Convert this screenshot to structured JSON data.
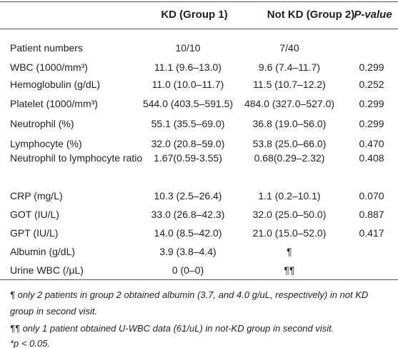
{
  "table": {
    "header": [
      "KD (Group 1)",
      "Not KD (Group 2)",
      "P-value"
    ],
    "rows": [
      [
        "Patient numbers",
        "10/10",
        "7/40",
        null
      ],
      [
        "WBC (1000/mm³)",
        "11.1 (9.6–13.0)",
        "9.6 (7.4–11.7)",
        "0.299"
      ],
      [
        "Hemoglobulin (g/dL)",
        "11.0 (10.0–11.7)",
        "11.5 (10.7–12.2)",
        "0.252"
      ],
      [
        "Platelet (1000/mm³)",
        "544.0 (403.5–591.5)",
        "484.0 (327.0–527.0)",
        "0.299"
      ],
      [
        "Neutrophil (%)",
        "55.1 (35.5–69.0)",
        "36.8 (19.0–56.0)",
        "0.299"
      ],
      [
        "Lymphocyte (%)",
        "32.0 (20.8–59.0)",
        "53.8 (25.0–66.0)",
        "0.470"
      ],
      [
        "Neutrophil to lymphocyte ratio",
        "1.67(0.59-3.55)",
        "0.68(0.29–2.32)",
        "0.408"
      ],
      [
        "CRP (mg/L)",
        "10.3 (2.5–26.4)",
        "1.1 (0.2–10.1)",
        "0.070"
      ],
      [
        "GOT (IU/L)",
        "33.0 (26.8–42.3)",
        "32.0 (25.0–50.0)",
        "0.887"
      ],
      [
        "GPT (IU/L)",
        "14.0 (8.5–42.0)",
        "21.0 (15.0–52.0)",
        "0.417"
      ],
      [
        "Albumin (g/dL)",
        "3.9 (3.8–4.4)",
        "¶",
        null
      ],
      [
        "Urine WBC (/μL)",
        "0 (0–0)",
        "¶¶",
        null
      ]
    ]
  },
  "footnotes": [
    "¶ only 2 patients in group 2 obtained albumin (3.7, and 4.0 g/uL, respectively) in not KD group in second visit.",
    "¶¶ only 1 patient obtained U-WBC data (61/uL) in not-KD group in second visit.",
    "*p < 0.05."
  ]
}
